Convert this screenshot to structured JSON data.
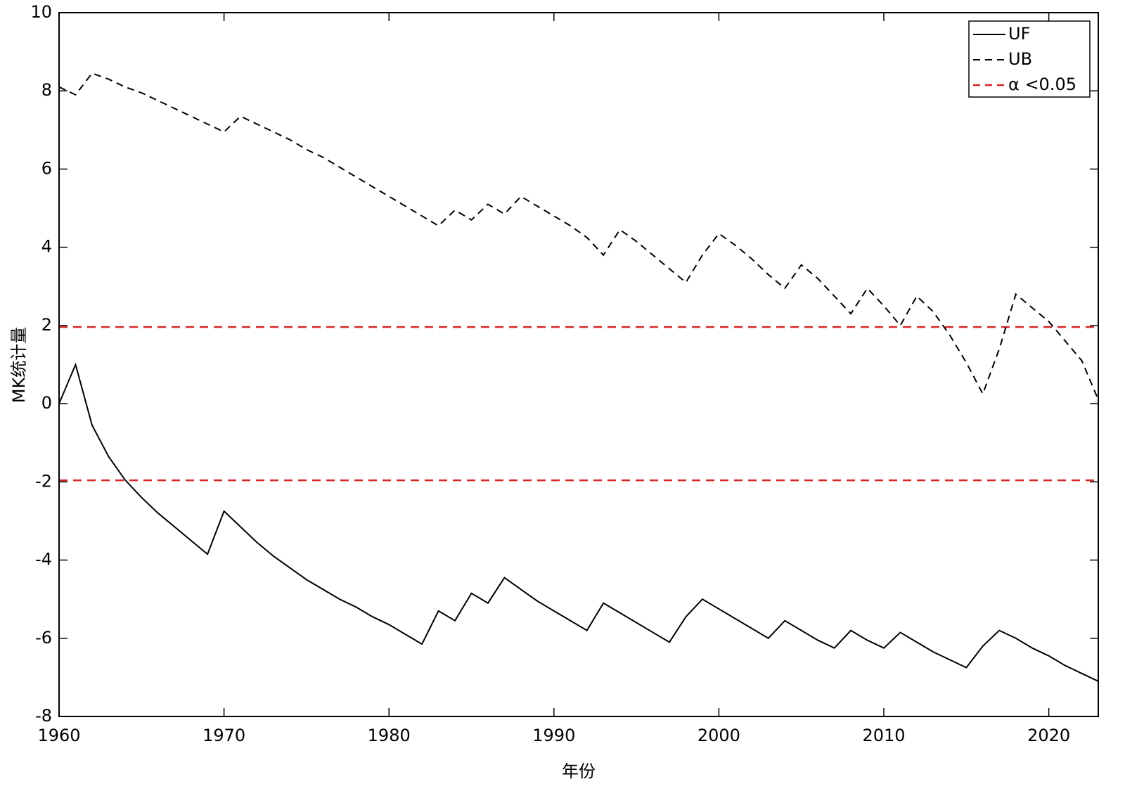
{
  "chart_data": {
    "type": "line",
    "xlabel": "年份",
    "ylabel": "MK统计量",
    "x": [
      1960,
      1961,
      1962,
      1963,
      1964,
      1965,
      1966,
      1967,
      1968,
      1969,
      1970,
      1971,
      1972,
      1973,
      1974,
      1975,
      1976,
      1977,
      1978,
      1979,
      1980,
      1981,
      1982,
      1983,
      1984,
      1985,
      1986,
      1987,
      1988,
      1989,
      1990,
      1991,
      1992,
      1993,
      1994,
      1995,
      1996,
      1997,
      1998,
      1999,
      2000,
      2001,
      2002,
      2003,
      2004,
      2005,
      2006,
      2007,
      2008,
      2009,
      2010,
      2011,
      2012,
      2013,
      2014,
      2015,
      2016,
      2017,
      2018,
      2019,
      2020,
      2021,
      2022,
      2023
    ],
    "series": [
      {
        "name": "UF",
        "color": "#000000",
        "dash": "solid",
        "values": [
          0,
          1.0,
          -0.55,
          -1.35,
          -1.95,
          -2.4,
          -2.8,
          -3.15,
          -3.5,
          -3.85,
          -2.75,
          -3.15,
          -3.55,
          -3.9,
          -4.2,
          -4.5,
          -4.75,
          -5.0,
          -5.2,
          -5.45,
          -5.65,
          -5.9,
          -6.15,
          -5.3,
          -5.55,
          -4.85,
          -5.1,
          -4.45,
          -4.75,
          -5.05,
          -5.3,
          -5.55,
          -5.8,
          -5.1,
          -5.35,
          -5.6,
          -5.85,
          -6.1,
          -5.45,
          -5.0,
          -5.25,
          -5.5,
          -5.75,
          -6.0,
          -5.55,
          -5.8,
          -6.05,
          -6.25,
          -5.8,
          -6.05,
          -6.25,
          -5.85,
          -6.1,
          -6.35,
          -6.55,
          -6.75,
          -6.2,
          -5.8,
          -6.0,
          -6.25,
          -6.45,
          -6.7,
          -6.9,
          -7.1
        ]
      },
      {
        "name": "UB",
        "color": "#000000",
        "dash": "dashed",
        "values": [
          8.1,
          7.9,
          8.45,
          8.3,
          8.1,
          7.95,
          7.75,
          7.55,
          7.35,
          7.15,
          6.95,
          7.35,
          7.15,
          6.95,
          6.75,
          6.5,
          6.3,
          6.05,
          5.8,
          5.55,
          5.3,
          5.05,
          4.8,
          4.55,
          4.95,
          4.7,
          5.1,
          4.85,
          5.3,
          5.05,
          4.8,
          4.55,
          4.25,
          3.8,
          4.45,
          4.15,
          3.8,
          3.45,
          3.1,
          3.8,
          4.35,
          4.05,
          3.7,
          3.3,
          2.95,
          3.55,
          3.2,
          2.75,
          2.3,
          2.95,
          2.5,
          2.0,
          2.75,
          2.35,
          1.75,
          1.05,
          0.25,
          1.4,
          2.8,
          2.45,
          2.1,
          1.6,
          1.1,
          0.1
        ]
      }
    ],
    "threshold": {
      "name": "α <0.05",
      "color": "#d62728",
      "values": [
        1.96,
        -1.96
      ]
    },
    "xlim": [
      1960,
      2023
    ],
    "xticks": [
      1960,
      1970,
      1980,
      1990,
      2000,
      2010,
      2020
    ],
    "ylim": [
      -8,
      10
    ],
    "yticks": [
      -8,
      -6,
      -4,
      -2,
      0,
      2,
      4,
      6,
      8,
      10
    ],
    "grid": false,
    "legend": "upper right"
  }
}
